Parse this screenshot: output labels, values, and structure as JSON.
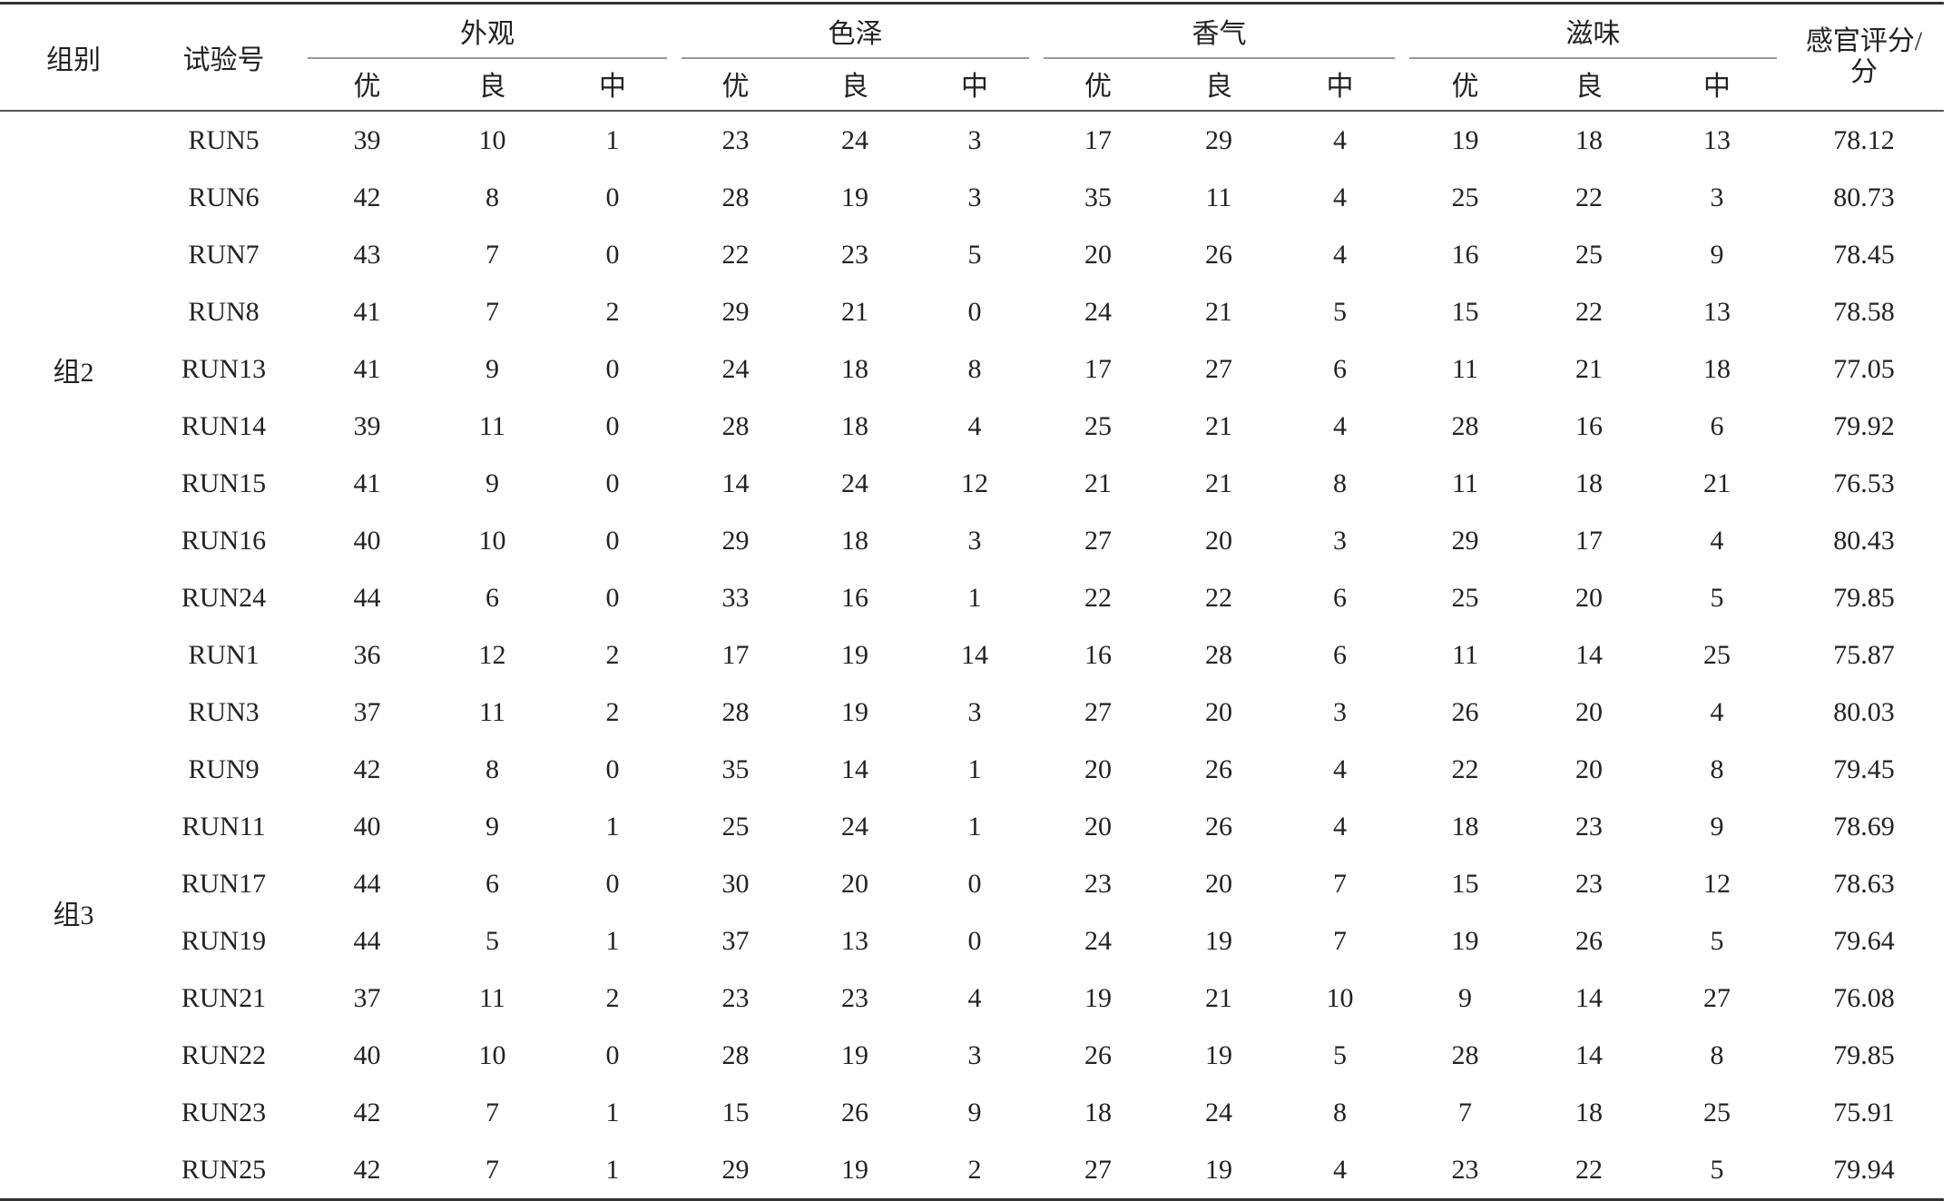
{
  "header": {
    "group": "组别",
    "run": "试验号",
    "categories": [
      "外观",
      "色泽",
      "香气",
      "滋味"
    ],
    "grades": [
      "优",
      "良",
      "中"
    ],
    "score_line1": "感官评分/",
    "score_line2": "分"
  },
  "groups": [
    {
      "label": "组2",
      "rows": [
        {
          "run": "RUN5",
          "vals": [
            "39",
            "10",
            "1",
            "23",
            "24",
            "3",
            "17",
            "29",
            "4",
            "19",
            "18",
            "13"
          ],
          "score": "78.12"
        },
        {
          "run": "RUN6",
          "vals": [
            "42",
            "8",
            "0",
            "28",
            "19",
            "3",
            "35",
            "11",
            "4",
            "25",
            "22",
            "3"
          ],
          "score": "80.73"
        },
        {
          "run": "RUN7",
          "vals": [
            "43",
            "7",
            "0",
            "22",
            "23",
            "5",
            "20",
            "26",
            "4",
            "16",
            "25",
            "9"
          ],
          "score": "78.45"
        },
        {
          "run": "RUN8",
          "vals": [
            "41",
            "7",
            "2",
            "29",
            "21",
            "0",
            "24",
            "21",
            "5",
            "15",
            "22",
            "13"
          ],
          "score": "78.58"
        },
        {
          "run": "RUN13",
          "vals": [
            "41",
            "9",
            "0",
            "24",
            "18",
            "8",
            "17",
            "27",
            "6",
            "11",
            "21",
            "18"
          ],
          "score": "77.05"
        },
        {
          "run": "RUN14",
          "vals": [
            "39",
            "11",
            "0",
            "28",
            "18",
            "4",
            "25",
            "21",
            "4",
            "28",
            "16",
            "6"
          ],
          "score": "79.92"
        },
        {
          "run": "RUN15",
          "vals": [
            "41",
            "9",
            "0",
            "14",
            "24",
            "12",
            "21",
            "21",
            "8",
            "11",
            "18",
            "21"
          ],
          "score": "76.53"
        },
        {
          "run": "RUN16",
          "vals": [
            "40",
            "10",
            "0",
            "29",
            "18",
            "3",
            "27",
            "20",
            "3",
            "29",
            "17",
            "4"
          ],
          "score": "80.43"
        },
        {
          "run": "RUN24",
          "vals": [
            "44",
            "6",
            "0",
            "33",
            "16",
            "1",
            "22",
            "22",
            "6",
            "25",
            "20",
            "5"
          ],
          "score": "79.85"
        }
      ]
    },
    {
      "label": "组3",
      "rows": [
        {
          "run": "RUN1",
          "vals": [
            "36",
            "12",
            "2",
            "17",
            "19",
            "14",
            "16",
            "28",
            "6",
            "11",
            "14",
            "25"
          ],
          "score": "75.87"
        },
        {
          "run": "RUN3",
          "vals": [
            "37",
            "11",
            "2",
            "28",
            "19",
            "3",
            "27",
            "20",
            "3",
            "26",
            "20",
            "4"
          ],
          "score": "80.03"
        },
        {
          "run": "RUN9",
          "vals": [
            "42",
            "8",
            "0",
            "35",
            "14",
            "1",
            "20",
            "26",
            "4",
            "22",
            "20",
            "8"
          ],
          "score": "79.45"
        },
        {
          "run": "RUN11",
          "vals": [
            "40",
            "9",
            "1",
            "25",
            "24",
            "1",
            "20",
            "26",
            "4",
            "18",
            "23",
            "9"
          ],
          "score": "78.69"
        },
        {
          "run": "RUN17",
          "vals": [
            "44",
            "6",
            "0",
            "30",
            "20",
            "0",
            "23",
            "20",
            "7",
            "15",
            "23",
            "12"
          ],
          "score": "78.63"
        },
        {
          "run": "RUN19",
          "vals": [
            "44",
            "5",
            "1",
            "37",
            "13",
            "0",
            "24",
            "19",
            "7",
            "19",
            "26",
            "5"
          ],
          "score": "79.64"
        },
        {
          "run": "RUN21",
          "vals": [
            "37",
            "11",
            "2",
            "23",
            "23",
            "4",
            "19",
            "21",
            "10",
            "9",
            "14",
            "27"
          ],
          "score": "76.08"
        },
        {
          "run": "RUN22",
          "vals": [
            "40",
            "10",
            "0",
            "28",
            "19",
            "3",
            "26",
            "19",
            "5",
            "28",
            "14",
            "8"
          ],
          "score": "79.85"
        },
        {
          "run": "RUN23",
          "vals": [
            "42",
            "7",
            "1",
            "15",
            "26",
            "9",
            "18",
            "24",
            "8",
            "7",
            "18",
            "25"
          ],
          "score": "75.91"
        },
        {
          "run": "RUN25",
          "vals": [
            "42",
            "7",
            "1",
            "29",
            "19",
            "2",
            "27",
            "19",
            "4",
            "23",
            "22",
            "5"
          ],
          "score": "79.94"
        }
      ]
    }
  ]
}
